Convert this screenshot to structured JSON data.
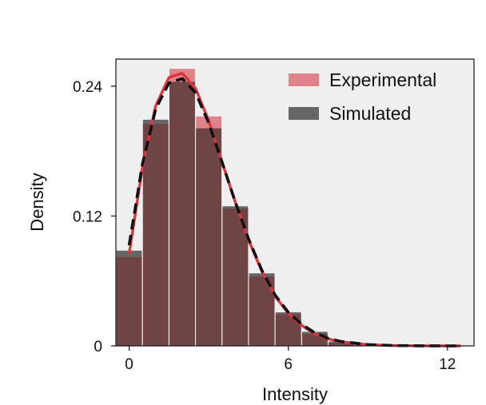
{
  "chart_data": {
    "type": "bar",
    "xlabel": "Intensity",
    "ylabel": "Density",
    "xlim": [
      -0.5,
      13
    ],
    "ylim": [
      0,
      0.265
    ],
    "xticks": [
      0,
      6,
      12
    ],
    "xtick_labels": [
      "0",
      "6",
      "12"
    ],
    "yticks": [
      0,
      0.12,
      0.24
    ],
    "ytick_labels": [
      "0",
      "0.12",
      "0.24"
    ],
    "grid": false,
    "legend_position": "top-right",
    "bin_edges": [
      -0.5,
      0.5,
      1.5,
      2.5,
      3.5,
      4.5,
      5.5,
      6.5,
      7.5,
      8.5,
      9.5,
      10.5,
      11.5,
      12.5
    ],
    "series": [
      {
        "name": "Experimental",
        "kind": "histogram",
        "color": "#e0828a",
        "values": [
          0.082,
          0.205,
          0.256,
          0.212,
          0.127,
          0.064,
          0.029,
          0.011,
          0.003,
          0.001,
          0.0005,
          0.0005,
          0.0003
        ]
      },
      {
        "name": "Simulated",
        "kind": "histogram",
        "color": "#666666",
        "values": [
          0.088,
          0.209,
          0.244,
          0.201,
          0.129,
          0.067,
          0.031,
          0.013,
          0.004,
          0.001,
          0.0005,
          0.0003,
          0.0002
        ]
      }
    ],
    "fit_curves": [
      {
        "for": "Experimental",
        "style": "solid",
        "color": "#d9373f",
        "x": [
          0,
          0.5,
          1,
          1.5,
          2,
          2.5,
          3,
          3.5,
          4,
          4.5,
          5,
          5.5,
          6,
          6.5,
          7,
          7.5,
          8,
          9,
          10,
          11,
          12,
          12.5
        ],
        "y": [
          0.085,
          0.165,
          0.222,
          0.248,
          0.252,
          0.238,
          0.208,
          0.17,
          0.133,
          0.098,
          0.069,
          0.046,
          0.03,
          0.019,
          0.011,
          0.0065,
          0.0037,
          0.0011,
          0.0003,
          0.0001,
          3e-05,
          1e-05
        ]
      },
      {
        "for": "Simulated",
        "style": "dashed",
        "color": "#111111",
        "x": [
          0,
          0.5,
          1,
          1.5,
          2,
          2.5,
          3,
          3.5,
          4,
          4.5,
          5,
          5.5,
          6,
          6.5,
          7,
          7.5,
          8,
          9,
          10,
          11,
          12,
          12.5
        ],
        "y": [
          0.093,
          0.168,
          0.219,
          0.243,
          0.247,
          0.234,
          0.206,
          0.17,
          0.133,
          0.099,
          0.07,
          0.047,
          0.031,
          0.02,
          0.012,
          0.007,
          0.004,
          0.0012,
          0.0003,
          0.0001,
          3e-05,
          1e-05
        ]
      }
    ],
    "colors": {
      "plot_background": "#efefef",
      "overlap": "#6e4445"
    }
  }
}
